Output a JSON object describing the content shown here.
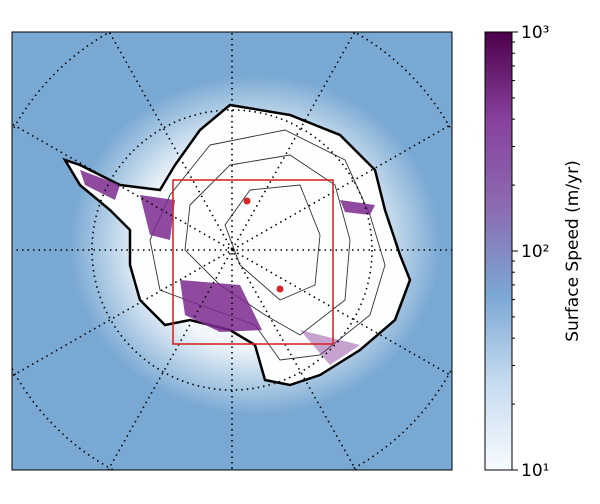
{
  "colorbar": {
    "label": "Surface Speed (m/yr)",
    "scale": "log",
    "lim": [
      10,
      1000
    ],
    "ticks": [
      {
        "value": 10,
        "label": "10¹"
      },
      {
        "value": 100,
        "label": "10²"
      },
      {
        "value": 1000,
        "label": "10³"
      }
    ],
    "minor_ticks": [
      20,
      30,
      40,
      50,
      60,
      70,
      80,
      90,
      200,
      300,
      400,
      500,
      600,
      700,
      800,
      900
    ],
    "colors": [
      "#f7fbff",
      "#c6dbef",
      "#7ba7d4",
      "#8c6bb1",
      "#88419d",
      "#4d004b"
    ]
  }
}
